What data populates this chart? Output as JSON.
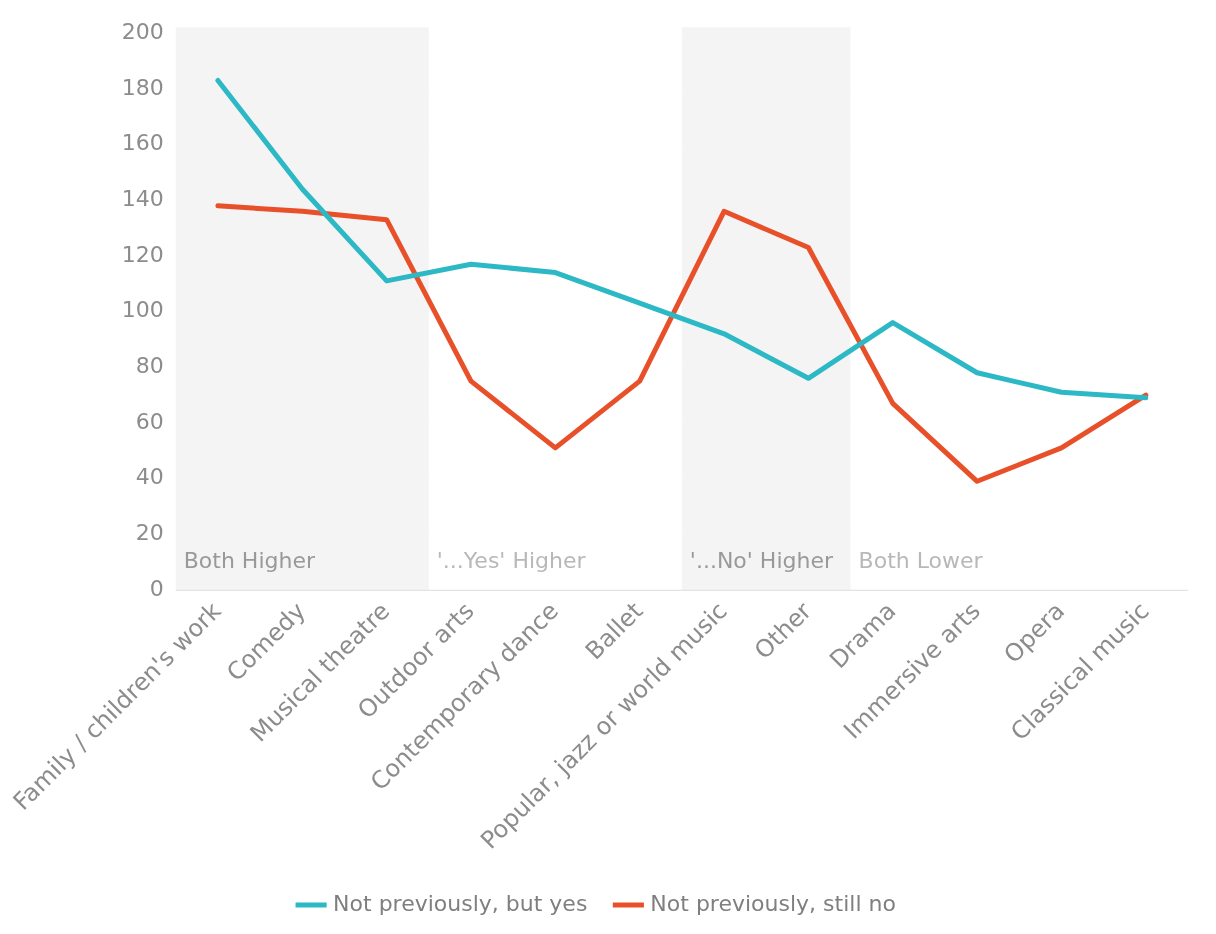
{
  "chart_data": {
    "type": "line",
    "categories": [
      "Family / children's work",
      "Comedy",
      "Musical theatre",
      "Outdoor arts",
      "Contemporary dance",
      "Ballet",
      "Popular, jazz or world music",
      "Other",
      "Drama",
      "Immersive arts",
      "Opera",
      "Classical music"
    ],
    "series": [
      {
        "name": "Not previously, but yes",
        "color": "#2db8c5",
        "values": [
          183,
          144,
          111,
          117,
          114,
          103,
          92,
          76,
          96,
          78,
          71,
          69
        ]
      },
      {
        "name": "Not previously, still no",
        "color": "#e8502a",
        "values": [
          138,
          136,
          133,
          75,
          51,
          75,
          136,
          123,
          67,
          39,
          51,
          70
        ]
      }
    ],
    "ylim": [
      0,
      200
    ],
    "yticks": [
      0,
      20,
      40,
      60,
      80,
      100,
      120,
      140,
      160,
      180,
      200
    ],
    "grid": "y",
    "legend": "bottom",
    "marker": "none",
    "line_style": "solid",
    "bands": [
      {
        "axis": "x",
        "from": "Family / children's work",
        "to": "Musical theatre",
        "label": "Both Higher",
        "color": "#f4f4f4"
      },
      {
        "axis": "x",
        "from": "Outdoor arts",
        "to": "Ballet",
        "label": "'...Yes' Higher",
        "color": "#ffffff"
      },
      {
        "axis": "x",
        "from": "Popular, jazz or world music",
        "to": "Other",
        "label": "'...No' Higher",
        "color": "#f4f4f4"
      },
      {
        "axis": "x",
        "from": "Drama",
        "to": "Classical music",
        "label": "Both Lower",
        "color": "#ffffff"
      }
    ]
  }
}
